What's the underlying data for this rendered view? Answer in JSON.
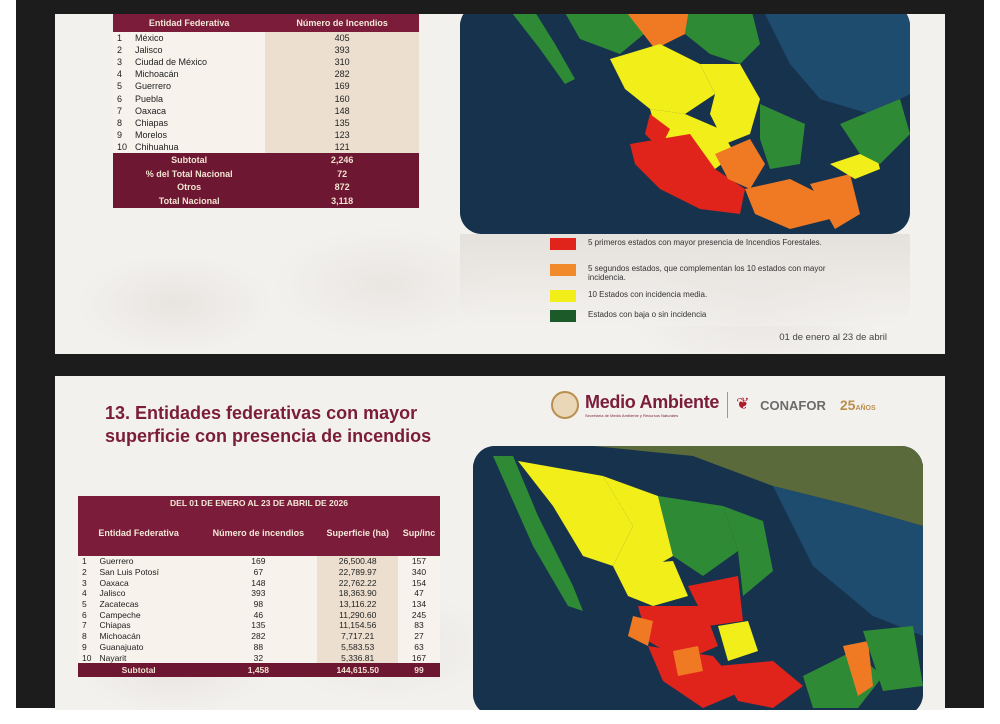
{
  "slide1": {
    "table": {
      "headers": [
        "Entidad Federativa",
        "Número de Incendios"
      ],
      "rows": [
        {
          "n": "1",
          "estado": "México",
          "valor": "405"
        },
        {
          "n": "2",
          "estado": "Jalisco",
          "valor": "393"
        },
        {
          "n": "3",
          "estado": "Ciudad de México",
          "valor": "310"
        },
        {
          "n": "4",
          "estado": "Michoacán",
          "valor": "282"
        },
        {
          "n": "5",
          "estado": "Guerrero",
          "valor": "169"
        },
        {
          "n": "6",
          "estado": "Puebla",
          "valor": "160"
        },
        {
          "n": "7",
          "estado": "Oaxaca",
          "valor": "148"
        },
        {
          "n": "8",
          "estado": "Chiapas",
          "valor": "135"
        },
        {
          "n": "9",
          "estado": "Morelos",
          "valor": "123"
        },
        {
          "n": "10",
          "estado": "Chihuahua",
          "valor": "121"
        }
      ],
      "summary": [
        {
          "label": "Subtotal",
          "value": "2,246"
        },
        {
          "label": "% del Total Nacional",
          "value": "72"
        },
        {
          "label": "Otros",
          "value": "872"
        },
        {
          "label": "Total Nacional",
          "value": "3,118"
        }
      ]
    },
    "legend": [
      {
        "color": "#e0241b",
        "text": "5 primeros estados con mayor presencia de Incendios Forestales."
      },
      {
        "color": "#f08a2a",
        "text": "5 segundos estados, que complementan los 10 estados con mayor incidencia."
      },
      {
        "color": "#f2ee1a",
        "text": "10 Estados con incidencia media."
      },
      {
        "color": "#1c5a2a",
        "text": "Estados con baja o sin incidencia"
      }
    ],
    "date": "01 de enero al 23 de abril"
  },
  "slide2": {
    "title": "13. Entidades federativas con mayor superficie con presencia de incendios",
    "logos": {
      "medio_ambiente": "Medio Ambiente",
      "medio_sub": "Secretaría de Medio Ambiente y Recursos Naturales",
      "conafor": "CONAFOR",
      "conafor_sub": "COMISIÓN NACIONAL FORESTAL",
      "anios": "25",
      "anios_label": "AÑOS"
    },
    "table": {
      "caption": "DEL 01 DE ENERO AL 23 DE ABRIL DE 2026",
      "headers": [
        "Entidad Federativa",
        "Número de incendios",
        "Superficie (ha)",
        "Sup/inc"
      ],
      "rows": [
        {
          "n": "1",
          "estado": "Guerrero",
          "inc": "169",
          "sup": "26,500.48",
          "ratio": "157"
        },
        {
          "n": "2",
          "estado": "San Luis Potosí",
          "inc": "67",
          "sup": "22,789.97",
          "ratio": "340"
        },
        {
          "n": "3",
          "estado": "Oaxaca",
          "inc": "148",
          "sup": "22,762.22",
          "ratio": "154"
        },
        {
          "n": "4",
          "estado": "Jalisco",
          "inc": "393",
          "sup": "18,363.90",
          "ratio": "47"
        },
        {
          "n": "5",
          "estado": "Zacatecas",
          "inc": "98",
          "sup": "13,116.22",
          "ratio": "134"
        },
        {
          "n": "6",
          "estado": "Campeche",
          "inc": "46",
          "sup": "11,290.60",
          "ratio": "245"
        },
        {
          "n": "7",
          "estado": "Chiapas",
          "inc": "135",
          "sup": "11,154.56",
          "ratio": "83"
        },
        {
          "n": "8",
          "estado": "Michoacán",
          "inc": "282",
          "sup": "7,717.21",
          "ratio": "27"
        },
        {
          "n": "9",
          "estado": "Guanajuato",
          "inc": "88",
          "sup": "5,583.53",
          "ratio": "63"
        },
        {
          "n": "10",
          "estado": "Nayarit",
          "inc": "32",
          "sup": "5,336.81",
          "ratio": "167"
        }
      ],
      "subtotal": {
        "label": "Subtotal",
        "inc": "1,458",
        "sup": "144,615.50",
        "ratio": "99"
      }
    }
  },
  "colors": {
    "wine": "#7a1c3a",
    "red": "#e0241b",
    "orange": "#f08a2a",
    "yellow": "#f2ee1a",
    "green": "#2f8a3a"
  }
}
